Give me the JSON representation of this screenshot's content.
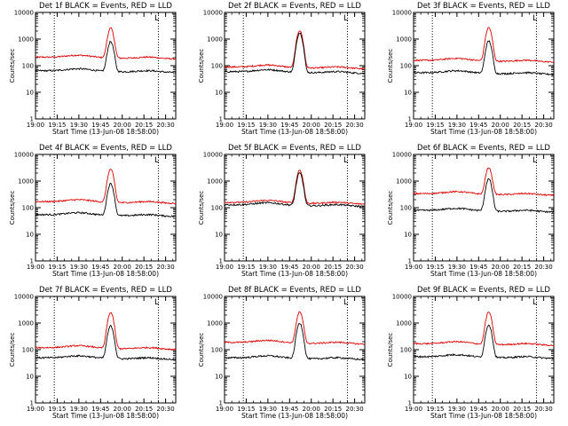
{
  "chart_data": {
    "type": "line",
    "y_scale": "log",
    "ylim": [
      1,
      10000
    ],
    "ylabel": "Counts/sec",
    "xlabel": "Start Time (13-Jun-08 18:58:00)",
    "x_ticks": [
      "19:00",
      "19:15",
      "19:30",
      "19:45",
      "20:00",
      "20:15",
      "20:30"
    ],
    "y_ticks": [
      "1",
      "10",
      "100",
      "1000",
      "10000"
    ],
    "series_colors": {
      "events": "#000000",
      "lld": "#e00000"
    },
    "panels": [
      {
        "title": "Det 1f BLACK = Events, RED = LLD",
        "marker": "L",
        "dotted_x": [
          "19:13",
          "20:25"
        ],
        "events": {
          "base": 65,
          "peak": 800
        },
        "lld": {
          "base": 210,
          "peak": 2600
        }
      },
      {
        "title": "Det 2f BLACK = Events, RED = LLD",
        "marker": "L",
        "dotted_x": [
          "19:13",
          "20:25"
        ],
        "events": {
          "base": 60,
          "peak": 1700
        },
        "lld": {
          "base": 90,
          "peak": 2100
        }
      },
      {
        "title": "Det 3f BLACK = Events, RED = LLD",
        "marker": "L",
        "dotted_x": [
          "19:13",
          "20:25"
        ],
        "events": {
          "base": 55,
          "peak": 850
        },
        "lld": {
          "base": 160,
          "peak": 2700
        }
      },
      {
        "title": "Det 4f BLACK = Events, RED = LLD",
        "marker": "L",
        "dotted_x": [
          "19:13",
          "20:25"
        ],
        "events": {
          "base": 55,
          "peak": 800
        },
        "lld": {
          "base": 170,
          "peak": 2800
        }
      },
      {
        "title": "Det 5f BLACK = Events, RED = LLD",
        "marker": "L",
        "dotted_x": [
          "19:13",
          "20:25"
        ],
        "events": {
          "base": 130,
          "peak": 2000
        },
        "lld": {
          "base": 160,
          "peak": 2600
        }
      },
      {
        "title": "Det 6f BLACK = Events, RED = LLD",
        "marker": "L",
        "dotted_x": [
          "19:13",
          "20:25"
        ],
        "events": {
          "base": 80,
          "peak": 1200
        },
        "lld": {
          "base": 340,
          "peak": 3200
        }
      },
      {
        "title": "Det 7f BLACK = Events, RED = LLD",
        "marker": "L",
        "dotted_x": [
          "19:13",
          "20:25"
        ],
        "events": {
          "base": 50,
          "peak": 780
        },
        "lld": {
          "base": 120,
          "peak": 2500
        }
      },
      {
        "title": "Det 8f BLACK = Events, RED = LLD",
        "marker": "L",
        "dotted_x": [
          "19:13",
          "20:25"
        ],
        "events": {
          "base": 50,
          "peak": 1000
        },
        "lld": {
          "base": 190,
          "peak": 2600
        }
      },
      {
        "title": "Det 9f BLACK = Events, RED = LLD",
        "marker": "L",
        "dotted_x": [
          "19:13",
          "20:25"
        ],
        "events": {
          "base": 55,
          "peak": 850
        },
        "lld": {
          "base": 170,
          "peak": 2600
        }
      }
    ]
  }
}
